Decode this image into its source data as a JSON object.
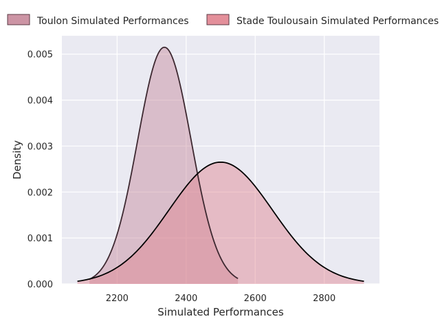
{
  "chart_data": {
    "type": "area",
    "title": "",
    "xlabel": "Simulated Performances",
    "ylabel": "Density",
    "xlim": [
      2040,
      2960
    ],
    "ylim": [
      0,
      0.0054
    ],
    "x_ticks": [
      2200,
      2400,
      2600,
      2800
    ],
    "y_ticks": [
      0.0,
      0.001,
      0.002,
      0.003,
      0.004,
      0.005
    ],
    "x_tick_labels": [
      "2200",
      "2400",
      "2600",
      "2800"
    ],
    "y_tick_labels": [
      "0.000",
      "0.001",
      "0.002",
      "0.003",
      "0.004",
      "0.005"
    ],
    "grid": true,
    "background": "#eaeaf2",
    "legend_position": "top",
    "series": [
      {
        "name": "Toulon Simulated Performances",
        "kind": "kde",
        "mean": 2337,
        "std": 77.5,
        "x_range": [
          2120,
          2550
        ],
        "peak_density": 0.00515,
        "fill_color": "#c6889a",
        "line_color": "#3d2830"
      },
      {
        "name": "Stade Toulousain Simulated Performances",
        "kind": "kde",
        "mean": 2500,
        "std": 150,
        "x_range": [
          2085,
          2915
        ],
        "peak_density": 0.00265,
        "fill_color": "#e0838f",
        "line_color": "#000000"
      }
    ]
  }
}
